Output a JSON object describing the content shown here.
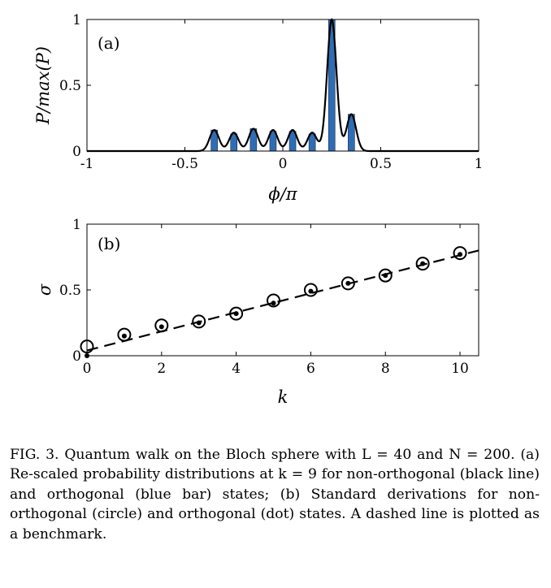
{
  "chart_data": [
    {
      "panel": "(a)",
      "type": "bar",
      "xlabel": "ϕ/π",
      "ylabel": "P/max(P)",
      "xlim": [
        -1,
        1
      ],
      "ylim": [
        0,
        1
      ],
      "xticks": [
        "-1",
        "-0.5",
        "0",
        "0.5",
        "1"
      ],
      "yticks": [
        "0",
        "0.5",
        "1"
      ],
      "bar_color": "#2e6db4",
      "line_color": "#000000",
      "bars": {
        "x": [
          -0.35,
          -0.25,
          -0.15,
          -0.05,
          0.05,
          0.15,
          0.25,
          0.35
        ],
        "values": [
          0.16,
          0.13,
          0.17,
          0.15,
          0.15,
          0.13,
          1.0,
          0.28
        ]
      },
      "line": {
        "peaks_x": [
          -0.35,
          -0.25,
          -0.15,
          -0.05,
          0.05,
          0.15,
          0.25,
          0.35
        ],
        "peaks_y": [
          0.16,
          0.14,
          0.17,
          0.16,
          0.16,
          0.14,
          1.0,
          0.28
        ],
        "peak_width": 0.024
      }
    },
    {
      "panel": "(b)",
      "type": "scatter",
      "xlabel": "k",
      "ylabel": "σ",
      "xlim": [
        0,
        10.5
      ],
      "ylim": [
        0,
        1
      ],
      "xticks": [
        "0",
        "2",
        "4",
        "6",
        "8",
        "10"
      ],
      "yticks": [
        "0",
        "0.5",
        "1"
      ],
      "series": [
        {
          "label": "non-orthogonal",
          "marker": "circle",
          "x": [
            0,
            1,
            2,
            3,
            4,
            5,
            6,
            7,
            8,
            9,
            10
          ],
          "y": [
            0.07,
            0.16,
            0.23,
            0.26,
            0.32,
            0.42,
            0.5,
            0.55,
            0.61,
            0.7,
            0.78
          ]
        },
        {
          "label": "orthogonal",
          "marker": "dot",
          "x": [
            0,
            1,
            2,
            3,
            4,
            5,
            6,
            7,
            8,
            9,
            10
          ],
          "y": [
            0.0,
            0.15,
            0.22,
            0.25,
            0.32,
            0.4,
            0.49,
            0.55,
            0.61,
            0.7,
            0.77
          ]
        },
        {
          "label": "benchmark",
          "marker": "dashed-line",
          "x": [
            0,
            10.5
          ],
          "y": [
            0.04,
            0.8
          ]
        }
      ]
    }
  ],
  "caption": {
    "lead": "FIG. 3.",
    "text": "Quantum walk on the Bloch sphere with L = 40 and N = 200. (a) Re-scaled probability distributions at k = 9 for non-orthogonal (black line) and orthogonal (blue bar) states; (b) Standard derivations for non-orthogonal (circle) and orthogonal (dot) states. A dashed line is plotted as a benchmark."
  }
}
